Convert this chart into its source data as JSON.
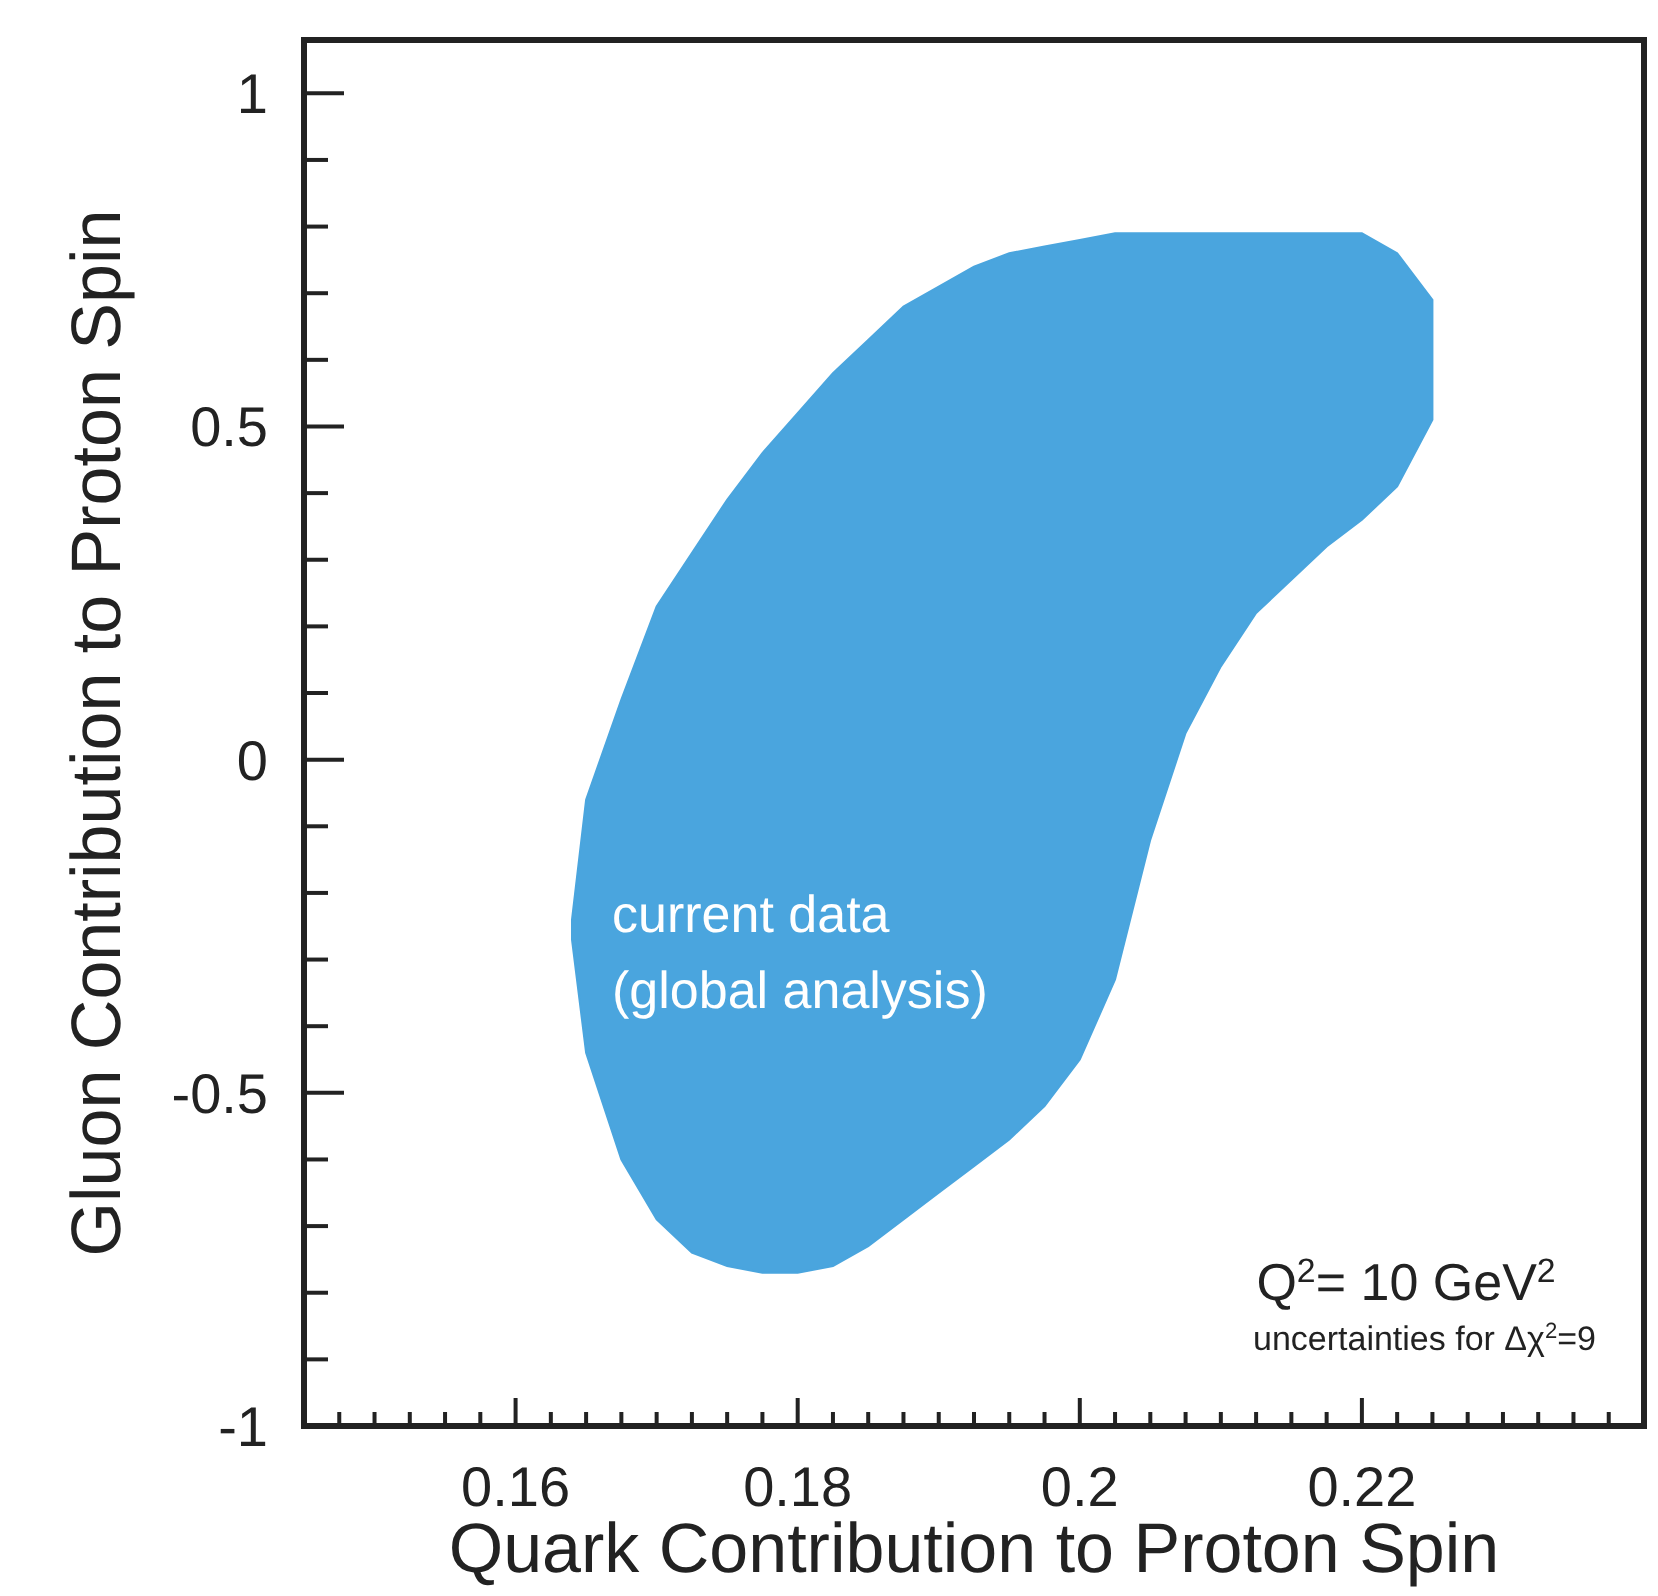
{
  "chart_data": {
    "type": "area",
    "xlabel": "Quark Contribution to Proton Spin",
    "ylabel": "Gluon Contribution to Proton Spin",
    "xlim": [
      0.145,
      0.24
    ],
    "ylim": [
      -1,
      1.08
    ],
    "xticks": [
      {
        "value": 0.1475,
        "label": null
      },
      {
        "value": 0.15,
        "label": null
      },
      {
        "value": 0.1525,
        "label": null
      },
      {
        "value": 0.155,
        "label": null
      },
      {
        "value": 0.1575,
        "label": null
      },
      0.16,
      {
        "value": 0.1625,
        "label": null
      },
      {
        "value": 0.165,
        "label": null
      },
      {
        "value": 0.1675,
        "label": null
      },
      {
        "value": 0.17,
        "label": null
      },
      {
        "value": 0.1725,
        "label": null
      },
      {
        "value": 0.175,
        "label": null
      },
      {
        "value": 0.1775,
        "label": null
      },
      0.18,
      {
        "value": 0.1825,
        "label": null
      },
      {
        "value": 0.185,
        "label": null
      },
      {
        "value": 0.1875,
        "label": null
      },
      {
        "value": 0.19,
        "label": null
      },
      {
        "value": 0.1925,
        "label": null
      },
      {
        "value": 0.195,
        "label": null
      },
      {
        "value": 0.1975,
        "label": null
      },
      0.2,
      {
        "value": 0.2025,
        "label": null
      },
      {
        "value": 0.205,
        "label": null
      },
      {
        "value": 0.2075,
        "label": null
      },
      {
        "value": 0.21,
        "label": null
      },
      {
        "value": 0.2125,
        "label": null
      },
      {
        "value": 0.215,
        "label": null
      },
      {
        "value": 0.2175,
        "label": null
      },
      0.22,
      {
        "value": 0.2225,
        "label": null
      },
      {
        "value": 0.225,
        "label": null
      },
      {
        "value": 0.2275,
        "label": null
      },
      {
        "value": 0.23,
        "label": null
      },
      {
        "value": 0.2325,
        "label": null
      },
      {
        "value": 0.235,
        "label": null
      },
      {
        "value": 0.2375,
        "label": null
      }
    ],
    "yticks": [
      -1,
      {
        "value": -0.9,
        "label": null
      },
      {
        "value": -0.8,
        "label": null
      },
      {
        "value": -0.7,
        "label": null
      },
      {
        "value": -0.6,
        "label": null
      },
      -0.5,
      {
        "value": -0.4,
        "label": null
      },
      {
        "value": -0.3,
        "label": null
      },
      {
        "value": -0.2,
        "label": null
      },
      {
        "value": -0.1,
        "label": null
      },
      0,
      {
        "value": 0.1,
        "label": null
      },
      {
        "value": 0.2,
        "label": null
      },
      {
        "value": 0.3,
        "label": null
      },
      {
        "value": 0.4,
        "label": null
      },
      0.5,
      {
        "value": 0.6,
        "label": null
      },
      {
        "value": 0.7,
        "label": null
      },
      {
        "value": 0.8,
        "label": null
      },
      {
        "value": 0.9,
        "label": null
      },
      1
    ],
    "grid": false,
    "series": [
      {
        "color": "#4aa5de",
        "x": [
          0.164,
          0.165,
          0.1675,
          0.17,
          0.1725,
          0.175,
          0.1775,
          0.18,
          0.1825,
          0.185,
          0.1875,
          0.19,
          0.1925,
          0.195,
          0.1975,
          0.2,
          0.2025,
          0.205,
          0.2075,
          0.21,
          0.2125,
          0.215,
          0.2175,
          0.22,
          0.2225,
          0.225,
          0.225,
          0.2225,
          0.22,
          0.2175,
          0.215,
          0.2125,
          0.21,
          0.2075,
          0.205,
          0.2025,
          0.2,
          0.1975,
          0.195,
          0.1925,
          0.19,
          0.1875,
          0.185,
          0.1825,
          0.18,
          0.1775,
          0.175,
          0.1725,
          0.17,
          0.1675,
          0.165,
          0.164
        ],
        "values": [
          -0.24,
          -0.06,
          0.09,
          0.23,
          0.31,
          0.39,
          0.46,
          0.52,
          0.58,
          0.63,
          0.68,
          0.71,
          0.74,
          0.76,
          0.77,
          0.78,
          0.79,
          0.79,
          0.79,
          0.79,
          0.79,
          0.79,
          0.79,
          0.79,
          0.76,
          0.69,
          0.51,
          0.41,
          0.36,
          0.32,
          0.27,
          0.22,
          0.14,
          0.04,
          -0.12,
          -0.33,
          -0.45,
          -0.52,
          -0.57,
          -0.61,
          -0.65,
          -0.69,
          -0.73,
          -0.76,
          -0.77,
          -0.77,
          -0.76,
          -0.74,
          -0.69,
          -0.6,
          -0.44,
          -0.27
        ]
      }
    ],
    "annotations": [
      "current data\n(global analysis)",
      "Q$^{2}$= 10 GeV$^{2}$",
      "uncertainties for Δχ$^{2}$=9"
    ]
  }
}
